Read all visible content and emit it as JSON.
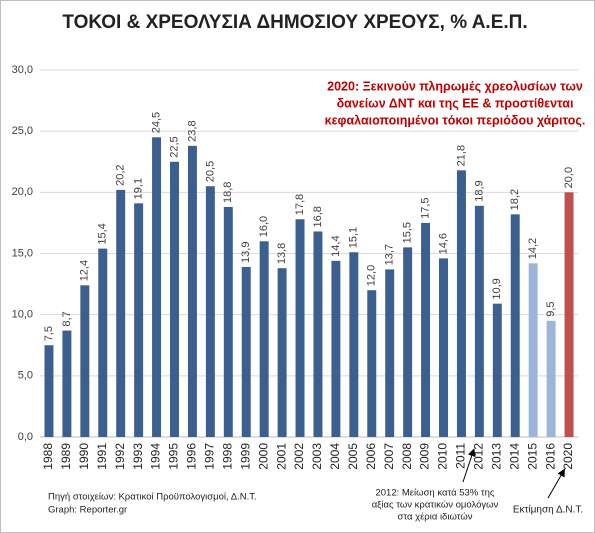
{
  "chart_data": {
    "type": "bar",
    "title": "ΤΟΚΟΙ & ΧΡΕΟΛΥΣΙΑ  ΔΗΜΟΣΙΟΥ ΧΡΕΟΥΣ, % Α.Ε.Π.",
    "categories": [
      "1988",
      "1989",
      "1990",
      "1991",
      "1992",
      "1993",
      "1994",
      "1995",
      "1996",
      "1997",
      "1998",
      "1999",
      "2000",
      "2001",
      "2002",
      "2003",
      "2004",
      "2005",
      "2006",
      "2007",
      "2008",
      "2009",
      "2010",
      "2011",
      "2012",
      "2013",
      "2014",
      "2015",
      "2016",
      "2020"
    ],
    "values": [
      7.5,
      8.7,
      12.4,
      15.4,
      20.2,
      19.1,
      24.5,
      22.5,
      23.8,
      20.5,
      18.8,
      13.9,
      16.0,
      13.8,
      17.8,
      16.8,
      14.4,
      15.1,
      12.0,
      13.7,
      15.5,
      17.5,
      14.6,
      21.8,
      18.9,
      10.9,
      18.2,
      14.2,
      9.5,
      20.0
    ],
    "value_labels": [
      "7,5",
      "8,7",
      "12,4",
      "15,4",
      "20,2",
      "19,1",
      "24,5",
      "22,5",
      "23,8",
      "20,5",
      "18,8",
      "13,9",
      "16,0",
      "13,8",
      "17,8",
      "16,8",
      "14,4",
      "15,1",
      "12,0",
      "13,7",
      "15,5",
      "17,5",
      "14,6",
      "21,8",
      "18,9",
      "10,9",
      "18,2",
      "14,2",
      "9,5",
      "20,0"
    ],
    "colors": [
      "#3b5f8f",
      "#3b5f8f",
      "#3b5f8f",
      "#3b5f8f",
      "#3b5f8f",
      "#3b5f8f",
      "#3b5f8f",
      "#3b5f8f",
      "#3b5f8f",
      "#3b5f8f",
      "#3b5f8f",
      "#3b5f8f",
      "#3b5f8f",
      "#3b5f8f",
      "#3b5f8f",
      "#3b5f8f",
      "#3b5f8f",
      "#3b5f8f",
      "#3b5f8f",
      "#3b5f8f",
      "#3b5f8f",
      "#3b5f8f",
      "#3b5f8f",
      "#3b5f8f",
      "#3b5f8f",
      "#3b5f8f",
      "#3b5f8f",
      "#9db5d8",
      "#9db5d8",
      "#c0504d"
    ],
    "ylim": [
      0,
      30
    ],
    "yticks": [
      {
        "value": 0,
        "label": "0,0"
      },
      {
        "value": 5,
        "label": "5,0"
      },
      {
        "value": 10,
        "label": "10,0"
      },
      {
        "value": 15,
        "label": "15,0"
      },
      {
        "value": 20,
        "label": "20,0"
      },
      {
        "value": 25,
        "label": "25,0"
      },
      {
        "value": 30,
        "label": "30,0"
      }
    ],
    "grid": true,
    "highlight_text": [
      "2020: Ξεκινούν πληρωμές χρεολυσίων των",
      "δανείων ΔΝΤ και της ΕΕ & προστίθενται",
      "κεφαλαιοποιημένοι τόκοι περιόδου χάριτος."
    ],
    "source_note": [
      "Πηγή στοιχείων:  Κρατικοί Προϋπολογισμοί, Δ.Ν.Τ.",
      "Graph: Reporter.gr"
    ],
    "note_2012": [
      "2012: Μείωση κατά 53% της",
      "αξίας των κρατικών ομολόγων",
      "στα χέρια ιδιωτών"
    ],
    "note_2020": "Εκτίμηση Δ.Ν.Τ."
  }
}
